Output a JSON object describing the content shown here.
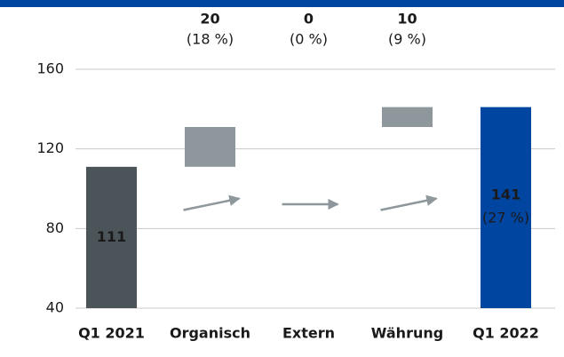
{
  "chart_data": {
    "type": "waterfall",
    "categories": [
      "Q1 2021",
      "Organisch",
      "Extern",
      "Währung",
      "Q1 2022"
    ],
    "values": [
      111,
      20,
      0,
      10,
      141
    ],
    "kinds": [
      "total",
      "delta",
      "delta",
      "delta",
      "total"
    ],
    "share_labels": [
      null,
      "(18 %)",
      "(0 %)",
      "(9 %)",
      "(27 %)"
    ],
    "colors": [
      "#4b5559",
      "#8d979c",
      "#8d979c",
      "#8d979c",
      "#0046a0"
    ],
    "ylim": [
      40,
      160
    ],
    "yticks": [
      40,
      80,
      120,
      160
    ],
    "grid": true
  }
}
